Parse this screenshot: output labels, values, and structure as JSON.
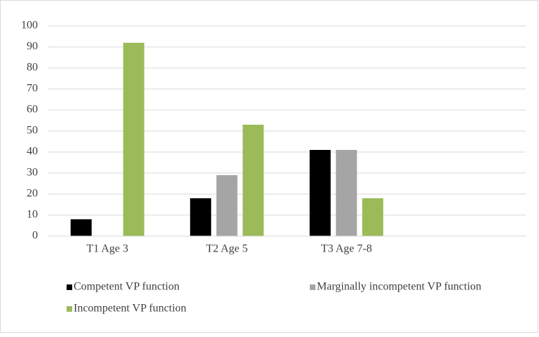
{
  "chart_data": {
    "type": "bar",
    "categories": [
      "T1 Age 3",
      "T2 Age 5",
      "T3 Age 7-8",
      null
    ],
    "series": [
      {
        "name": "Competent VP function",
        "color": "#000000",
        "values": [
          8,
          18,
          41,
          null
        ]
      },
      {
        "name": "Marginally incompetent VP function",
        "color": "#a5a5a5",
        "values": [
          null,
          29,
          41,
          null
        ]
      },
      {
        "name": "Incompetent VP function",
        "color": "#9bbb59",
        "values": [
          92,
          53,
          18,
          null
        ]
      }
    ],
    "ylim": [
      0,
      100
    ],
    "yticks": [
      0,
      10,
      20,
      30,
      40,
      50,
      60,
      70,
      80,
      90,
      100
    ],
    "grid": true,
    "legend": "bottom"
  }
}
